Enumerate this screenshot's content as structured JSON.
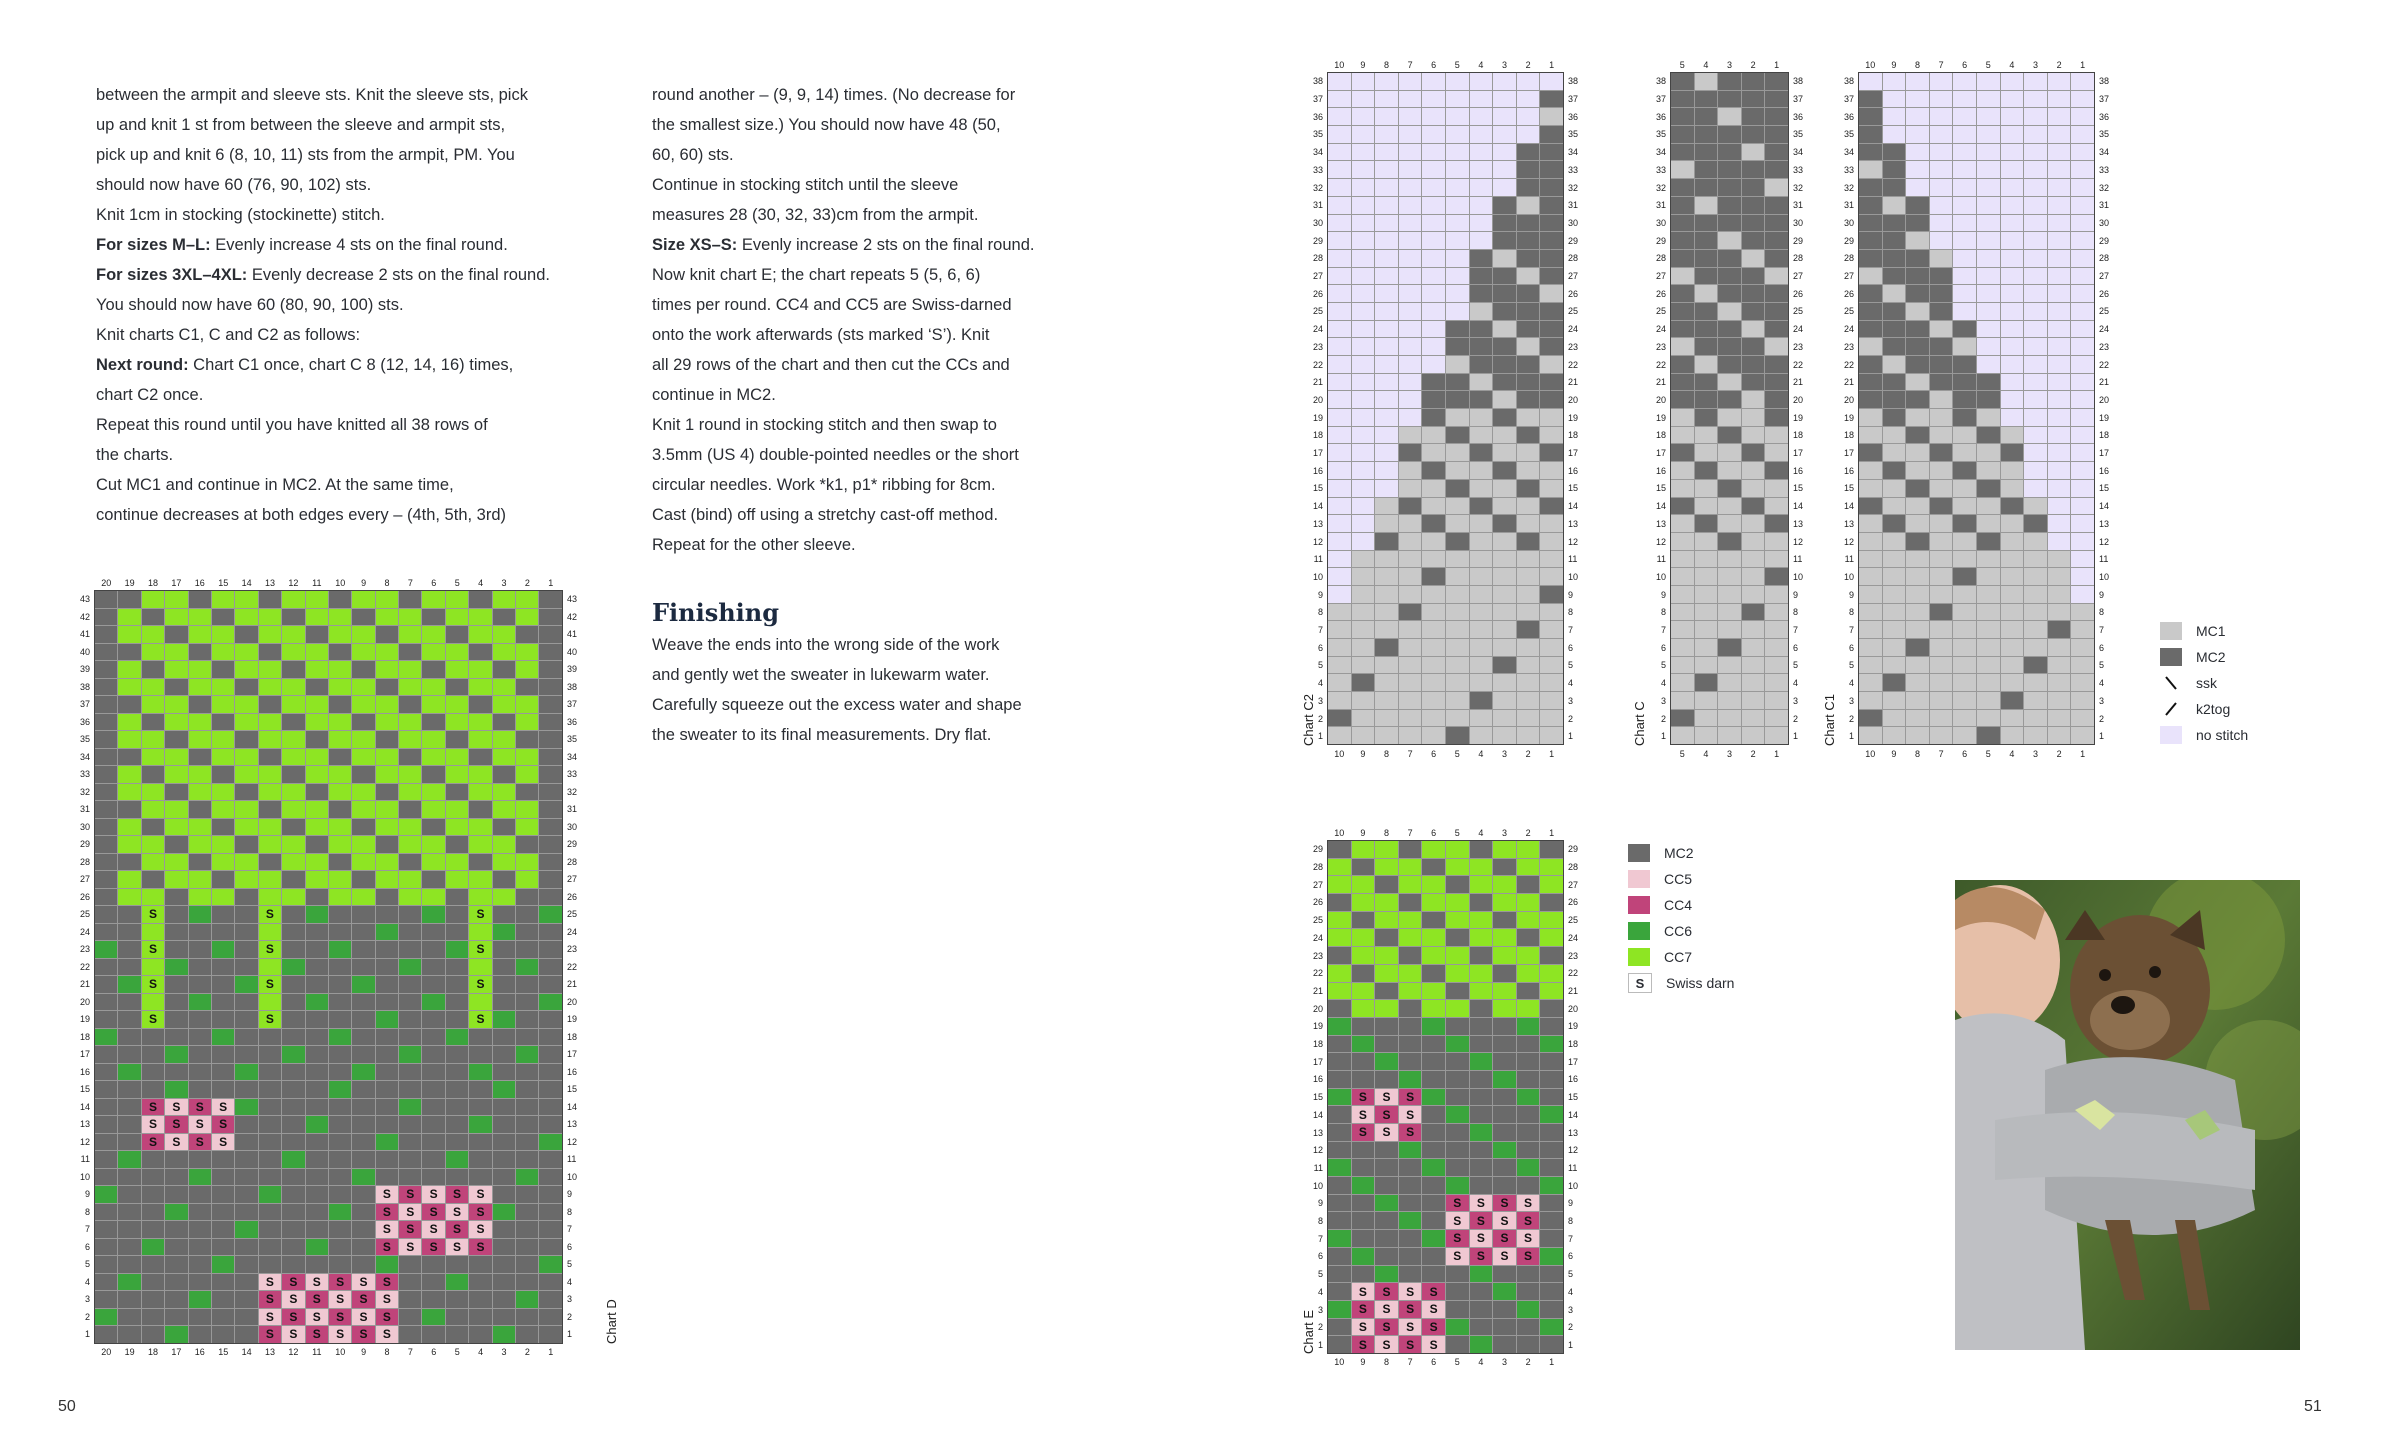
{
  "left_text": {
    "lines": [
      {
        "text": "between the armpit and sleeve sts. Knit the sleeve sts, pick"
      },
      {
        "text": "up and knit 1 st from between the sleeve and armpit sts,"
      },
      {
        "text": "pick up and knit 6 (8, 10, 11) sts from the armpit, PM. You"
      },
      {
        "text": "should now have 60 (76, 90, 102) sts."
      },
      {
        "text": "Knit 1cm in stocking (stockinette) stitch."
      },
      {
        "bold": "For sizes M–L:",
        "text": " Evenly increase 4 sts on the final round."
      },
      {
        "bold": "For sizes 3XL–4XL:",
        "text": " Evenly decrease 2 sts on the final round."
      },
      {
        "text": "You should now have 60 (80, 90, 100) sts."
      },
      {
        "text": "Knit charts C1, C and C2 as follows:"
      },
      {
        "bold": "Next round:",
        "text": " Chart C1 once, chart C 8 (12, 14, 16) times,"
      },
      {
        "text": "chart C2 once."
      },
      {
        "text": "Repeat this round until you have knitted all 38 rows of"
      },
      {
        "text": "the charts."
      },
      {
        "text": "Cut MC1 and continue in MC2. At the same time,"
      },
      {
        "text": "continue decreases at both edges every – (4th, 5th, 3rd)"
      }
    ]
  },
  "right_text": {
    "lines": [
      {
        "text": "round another – (9, 9, 14) times. (No decrease for"
      },
      {
        "text": "the smallest size.) You should now have 48 (50,"
      },
      {
        "text": "60, 60) sts."
      },
      {
        "text": "Continue in stocking stitch until the sleeve"
      },
      {
        "text": "measures 28 (30, 32, 33)cm from the armpit."
      },
      {
        "bold": "Size XS–S:",
        "text": " Evenly increase 2 sts on the final round."
      },
      {
        "text": "Now knit chart E; the chart repeats 5 (5, 6, 6)"
      },
      {
        "text": "times per round. CC4 and CC5 are Swiss-darned"
      },
      {
        "text": "onto the work afterwards (sts marked ‘S’). Knit"
      },
      {
        "text": "all 29 rows of the chart and then cut the CCs and"
      },
      {
        "text": "continue in MC2."
      },
      {
        "text": "Knit 1 round in stocking stitch and then swap to"
      },
      {
        "text": "3.5mm (US 4) double-pointed needles or the short"
      },
      {
        "text": "circular needles. Work *k1, p1* ribbing for 8cm."
      },
      {
        "text": "Cast (bind) off using a stretchy cast-off method."
      },
      {
        "text": "Repeat for the other sleeve."
      }
    ],
    "heading": "Finishing",
    "finishing_lines": [
      {
        "text": "Weave the ends into the wrong side of the work"
      },
      {
        "text": "and gently wet the sweater in lukewarm water."
      },
      {
        "text": "Carefully squeeze out the excess water and shape"
      },
      {
        "text": "the sweater to its final measurements. Dry flat."
      }
    ]
  },
  "page_numbers": {
    "left": "50",
    "right": "51"
  },
  "colors": {
    "MC1": "#c9c9c9",
    "MC2": "#6a6a6a",
    "CC5": "#f0c8d2",
    "CC4": "#c0447a",
    "CC6": "#3aa53c",
    "CC7": "#8ee523",
    "nostitch": "#e9e3fb",
    "grid": "#999999"
  },
  "legend_sleeve": [
    {
      "key": "MC1",
      "label": "MC1"
    },
    {
      "key": "MC2",
      "label": "MC2"
    },
    {
      "key": "ssk",
      "label": "ssk"
    },
    {
      "key": "k2tog",
      "label": "k2tog"
    },
    {
      "key": "nostitch",
      "label": "no stitch"
    }
  ],
  "legend_e": [
    {
      "key": "MC2",
      "label": "MC2"
    },
    {
      "key": "CC5",
      "label": "CC5"
    },
    {
      "key": "CC4",
      "label": "CC4"
    },
    {
      "key": "CC6",
      "label": "CC6"
    },
    {
      "key": "CC7",
      "label": "CC7"
    },
    {
      "key": "S",
      "label": "Swiss darn",
      "symbol": "S"
    }
  ],
  "charts": {
    "D": {
      "label": "Chart D",
      "cols": 20,
      "rows": 43
    },
    "C2": {
      "label": "Chart C2",
      "cols": 10,
      "rows": 38
    },
    "C": {
      "label": "Chart C",
      "cols": 5,
      "rows": 38
    },
    "C1": {
      "label": "Chart C1",
      "cols": 10,
      "rows": 38
    },
    "E": {
      "label": "Chart E",
      "cols": 10,
      "rows": 29
    }
  },
  "swiss_symbol": "S",
  "photo": {
    "icon": "photo-woman-with-dog-icon"
  }
}
